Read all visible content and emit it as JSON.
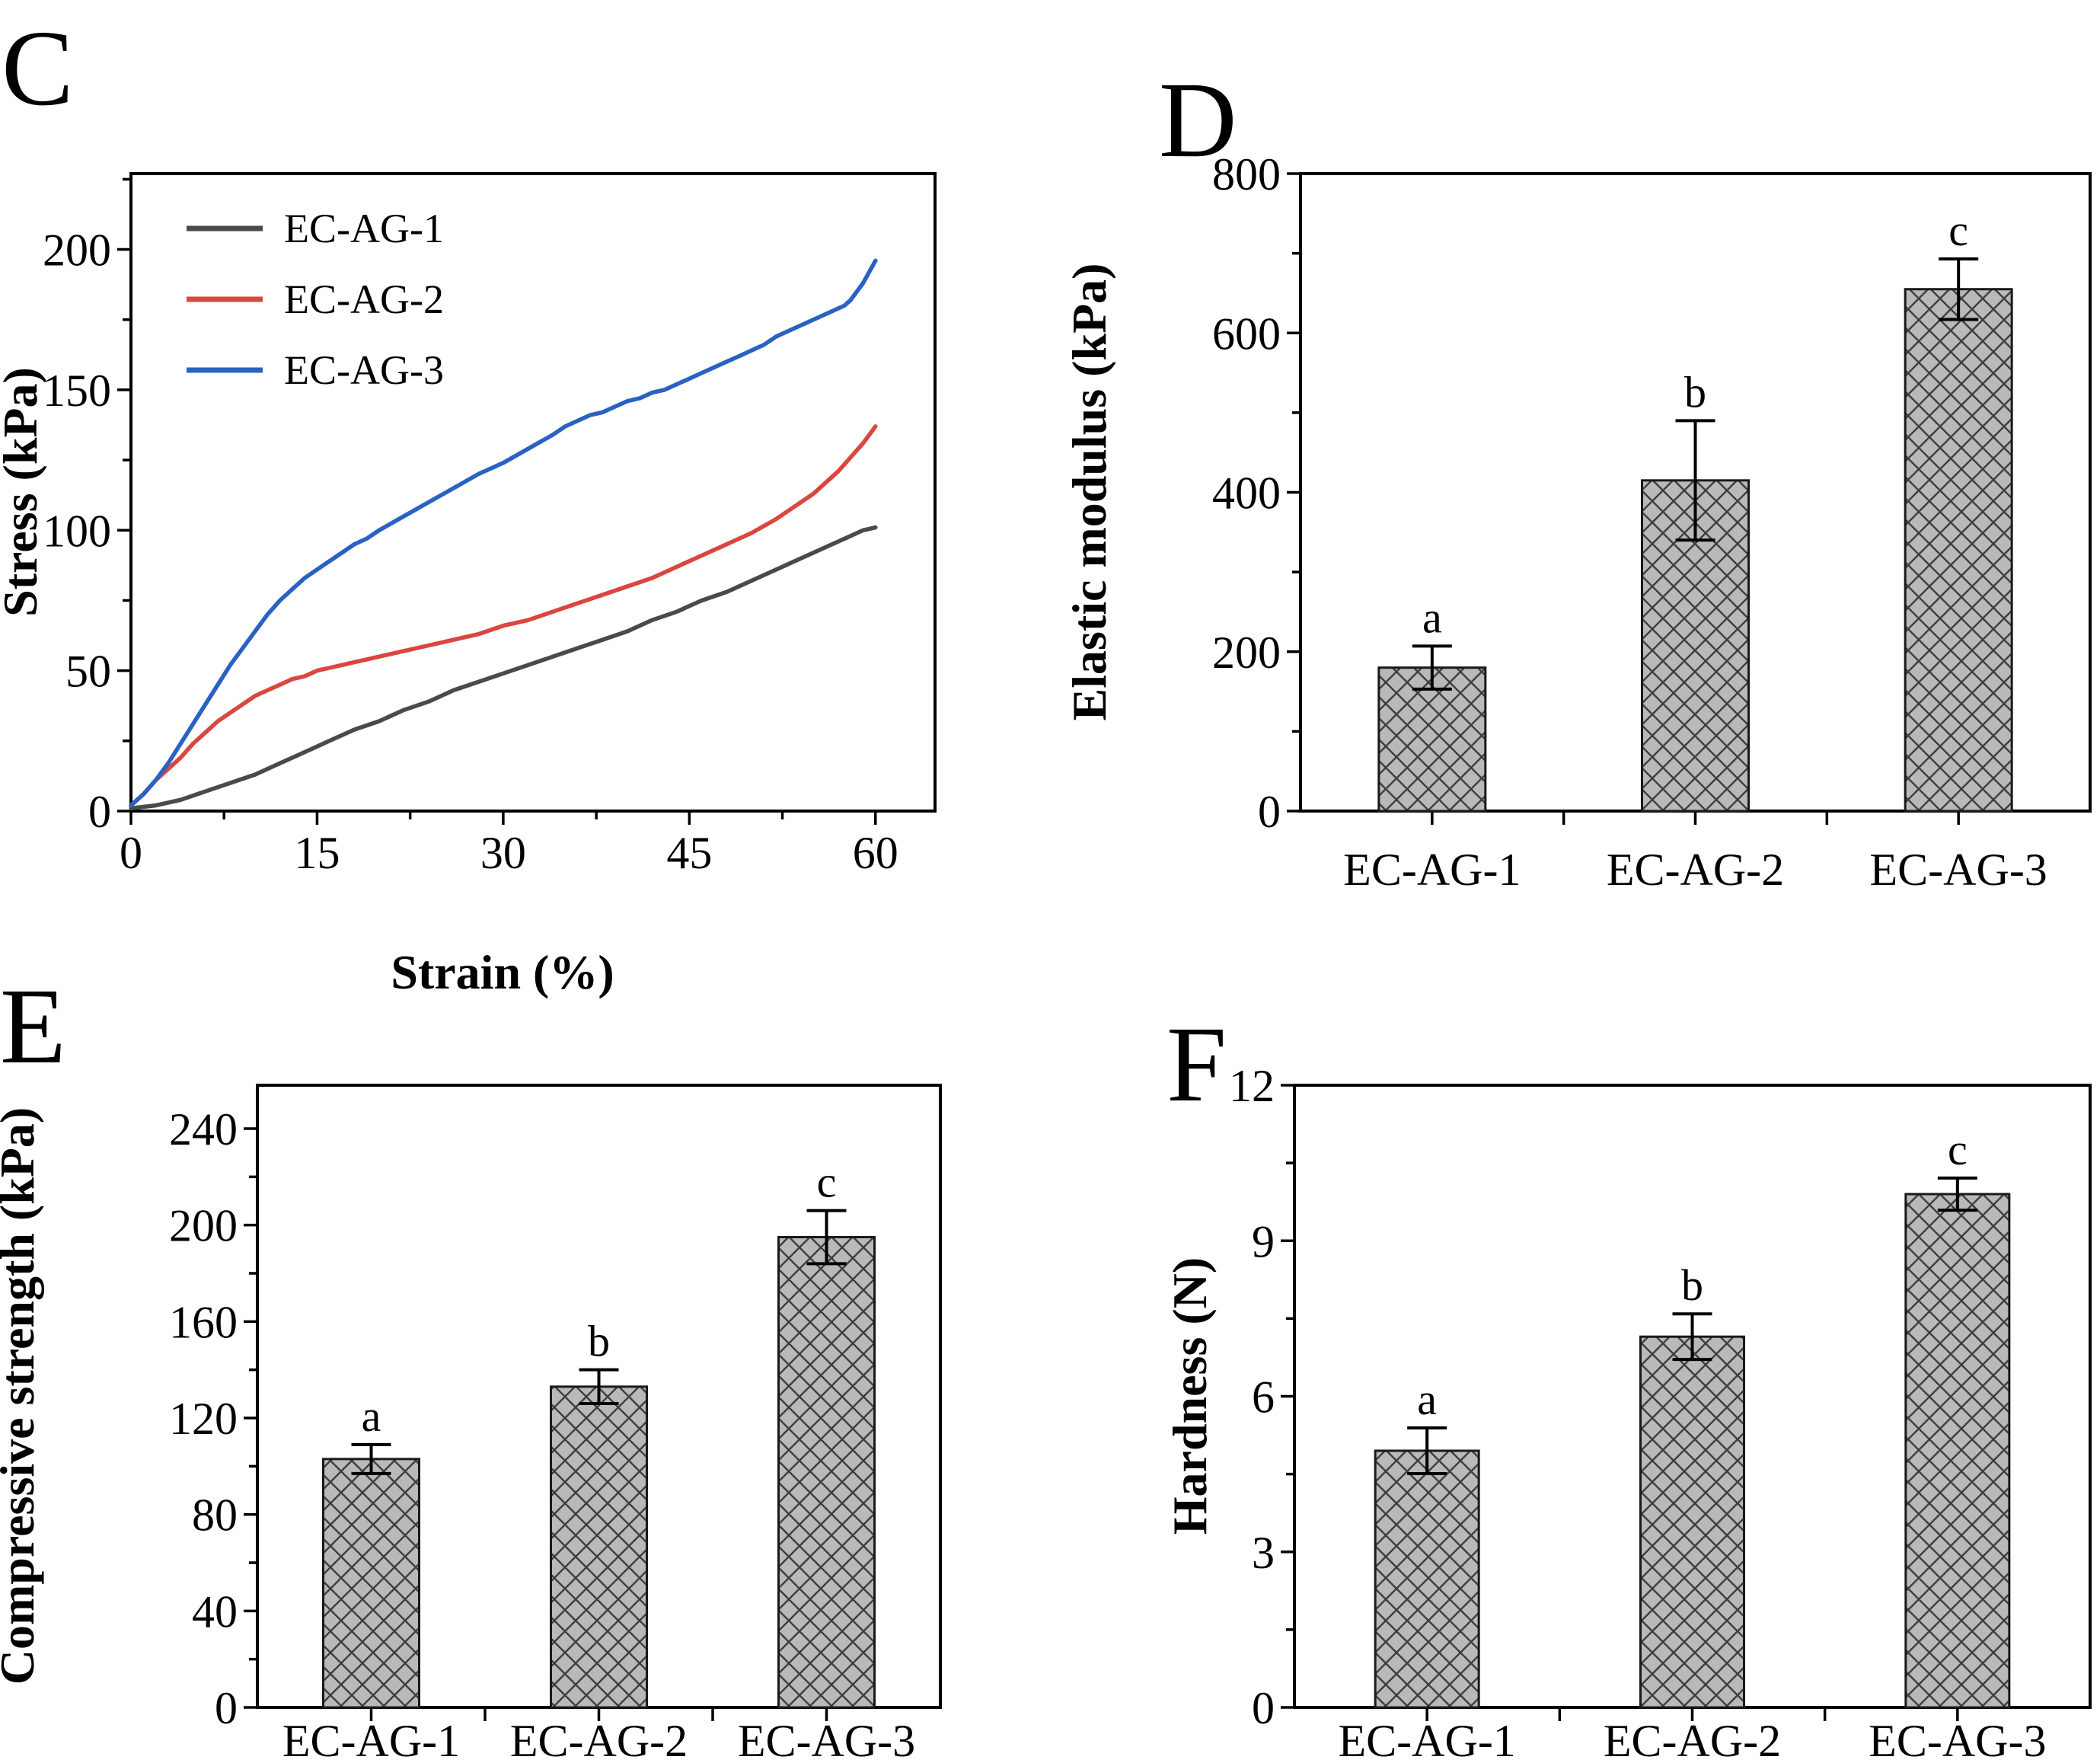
{
  "figure_title": "",
  "chart_data": [
    {
      "panel_label": "C",
      "type": "line",
      "xlabel": "Strain (%)",
      "ylabel": "Stress (kPa)",
      "xlim": [
        0,
        64.8
      ],
      "ylim": [
        0,
        227
      ],
      "xticks": [
        0,
        15,
        30,
        45,
        60
      ],
      "xticks_minor": [
        7.5,
        22.5,
        37.5,
        52.5
      ],
      "yticks": [
        0,
        50,
        100,
        150,
        200
      ],
      "yticks_minor": [
        25,
        75,
        125,
        175,
        225
      ],
      "grid": false,
      "legend_position": "top-left",
      "series": [
        {
          "name": "EC-AG-1",
          "color": "#4a4a4a",
          "points": [
            [
              0,
              1
            ],
            [
              2,
              2
            ],
            [
              4,
              4
            ],
            [
              6,
              7
            ],
            [
              8,
              10
            ],
            [
              10,
              13
            ],
            [
              12,
              17
            ],
            [
              14,
              21
            ],
            [
              15,
              23
            ],
            [
              16,
              25
            ],
            [
              18,
              29
            ],
            [
              20,
              32
            ],
            [
              22,
              36
            ],
            [
              24,
              39
            ],
            [
              26,
              43
            ],
            [
              28,
              46
            ],
            [
              30,
              49
            ],
            [
              32,
              52
            ],
            [
              34,
              55
            ],
            [
              36,
              58
            ],
            [
              38,
              61
            ],
            [
              40,
              64
            ],
            [
              42,
              68
            ],
            [
              44,
              71
            ],
            [
              45,
              73
            ],
            [
              46,
              75
            ],
            [
              48,
              78
            ],
            [
              50,
              82
            ],
            [
              52,
              86
            ],
            [
              54,
              90
            ],
            [
              56,
              94
            ],
            [
              58,
              98
            ],
            [
              59,
              100
            ],
            [
              60,
              101
            ]
          ]
        },
        {
          "name": "EC-AG-2",
          "color": "#d9473f",
          "points": [
            [
              0,
              2
            ],
            [
              1,
              6
            ],
            [
              2,
              11
            ],
            [
              3,
              15
            ],
            [
              4,
              19
            ],
            [
              5,
              24
            ],
            [
              6,
              28
            ],
            [
              7,
              32
            ],
            [
              8,
              35
            ],
            [
              9,
              38
            ],
            [
              10,
              41
            ],
            [
              11,
              43
            ],
            [
              12,
              45
            ],
            [
              13,
              47
            ],
            [
              14,
              48
            ],
            [
              15,
              50
            ],
            [
              16,
              51
            ],
            [
              17,
              52
            ],
            [
              18,
              53
            ],
            [
              19,
              54
            ],
            [
              20,
              55
            ],
            [
              22,
              57
            ],
            [
              24,
              59
            ],
            [
              26,
              61
            ],
            [
              28,
              63
            ],
            [
              30,
              66
            ],
            [
              32,
              68
            ],
            [
              34,
              71
            ],
            [
              36,
              74
            ],
            [
              38,
              77
            ],
            [
              40,
              80
            ],
            [
              42,
              83
            ],
            [
              44,
              87
            ],
            [
              45,
              89
            ],
            [
              46,
              91
            ],
            [
              48,
              95
            ],
            [
              50,
              99
            ],
            [
              52,
              104
            ],
            [
              54,
              110
            ],
            [
              55,
              113
            ],
            [
              56,
              117
            ],
            [
              57,
              121
            ],
            [
              58,
              126
            ],
            [
              59,
              131
            ],
            [
              60,
              137
            ]
          ]
        },
        {
          "name": "EC-AG-3",
          "color": "#2a62c3",
          "points": [
            [
              0,
              2
            ],
            [
              1,
              6
            ],
            [
              2,
              11
            ],
            [
              3,
              17
            ],
            [
              4,
              24
            ],
            [
              5,
              31
            ],
            [
              6,
              38
            ],
            [
              7,
              45
            ],
            [
              8,
              52
            ],
            [
              9,
              58
            ],
            [
              10,
              64
            ],
            [
              11,
              70
            ],
            [
              12,
              75
            ],
            [
              13,
              79
            ],
            [
              14,
              83
            ],
            [
              15,
              86
            ],
            [
              16,
              89
            ],
            [
              17,
              92
            ],
            [
              18,
              95
            ],
            [
              19,
              97
            ],
            [
              20,
              100
            ],
            [
              22,
              105
            ],
            [
              24,
              110
            ],
            [
              26,
              115
            ],
            [
              28,
              120
            ],
            [
              30,
              124
            ],
            [
              32,
              129
            ],
            [
              34,
              134
            ],
            [
              35,
              137
            ],
            [
              36,
              139
            ],
            [
              37,
              141
            ],
            [
              38,
              142
            ],
            [
              39,
              144
            ],
            [
              40,
              146
            ],
            [
              41,
              147
            ],
            [
              42,
              149
            ],
            [
              43,
              150
            ],
            [
              44,
              152
            ],
            [
              45,
              154
            ],
            [
              46,
              156
            ],
            [
              47,
              158
            ],
            [
              48,
              160
            ],
            [
              49,
              162
            ],
            [
              50,
              164
            ],
            [
              51,
              166
            ],
            [
              52,
              169
            ],
            [
              53,
              171
            ],
            [
              54,
              173
            ],
            [
              55,
              175
            ],
            [
              56,
              177
            ],
            [
              57,
              179
            ],
            [
              57.5,
              180
            ],
            [
              58,
              182
            ],
            [
              58.5,
              185
            ],
            [
              59,
              188
            ],
            [
              59.5,
              192
            ],
            [
              60,
              196
            ]
          ]
        }
      ]
    },
    {
      "panel_label": "D",
      "type": "bar",
      "ylabel": "Elastic modulus (kPa)",
      "categories": [
        "EC-AG-1",
        "EC-AG-2",
        "EC-AG-3"
      ],
      "values": [
        180,
        415,
        655
      ],
      "errors": [
        27,
        75,
        38
      ],
      "sig_letters": [
        "a",
        "b",
        "c"
      ],
      "ylim": [
        0,
        800
      ],
      "yticks": [
        0,
        200,
        400,
        600,
        800
      ],
      "yticks_minor": [
        100,
        300,
        500,
        700
      ],
      "bar_fill": "#b9b9b9",
      "hatch_color": "#3f3f3f",
      "bar_edge": "#1a1a1a"
    },
    {
      "panel_label": "E",
      "type": "bar",
      "ylabel": "Compressive strength (kPa)",
      "categories": [
        "EC-AG-1",
        "EC-AG-2",
        "EC-AG-3"
      ],
      "values": [
        103,
        133,
        195
      ],
      "errors": [
        6,
        7,
        11
      ],
      "sig_letters": [
        "a",
        "b",
        "c"
      ],
      "ylim": [
        0,
        258
      ],
      "yticks": [
        0,
        40,
        80,
        120,
        160,
        200,
        240
      ],
      "yticks_minor": [
        20,
        60,
        100,
        140,
        180,
        220
      ],
      "bar_fill": "#b9b9b9",
      "hatch_color": "#3f3f3f",
      "bar_edge": "#1a1a1a"
    },
    {
      "panel_label": "F",
      "type": "bar",
      "ylabel": "Hardness (N)",
      "categories": [
        "EC-AG-1",
        "EC-AG-2",
        "EC-AG-3"
      ],
      "values": [
        4.95,
        7.15,
        9.9
      ],
      "errors": [
        0.44,
        0.44,
        0.31
      ],
      "sig_letters": [
        "a",
        "b",
        "c"
      ],
      "ylim": [
        0,
        12
      ],
      "yticks": [
        0,
        3,
        6,
        9,
        12
      ],
      "yticks_minor": [
        1.5,
        4.5,
        7.5,
        10.5
      ],
      "bar_fill": "#b9b9b9",
      "hatch_color": "#3f3f3f",
      "bar_edge": "#1a1a1a"
    }
  ],
  "colors": {
    "axis": "#000000",
    "background": "#ffffff",
    "series_1": "#4a4a4a",
    "series_2": "#d9473f",
    "series_3": "#2a62c3"
  }
}
